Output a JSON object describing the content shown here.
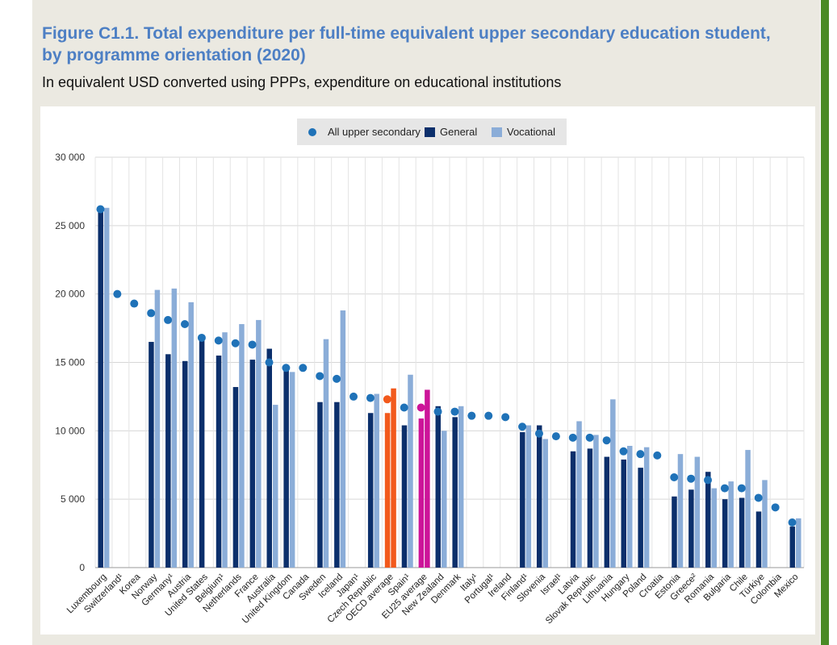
{
  "header": {
    "title": "Figure C1.1. Total expenditure per full-time equivalent upper secondary education student, by programme orientation (2020)",
    "subtitle": "In equivalent USD converted using PPPs, expenditure on educational institutions"
  },
  "colors": {
    "all": "#1f72b8",
    "general": "#0b2f6b",
    "vocational": "#8badd8",
    "oecd": "#f2591c",
    "eu25": "#cc1499",
    "accent_bar": "#4a8a25"
  },
  "legend": {
    "all": "All upper secondary",
    "general": "General",
    "vocational": "Vocational"
  },
  "chart_data": {
    "type": "bar",
    "title": "Figure C1.1. Total expenditure per full-time equivalent upper secondary education student, by programme orientation (2020)",
    "subtitle": "In equivalent USD converted using PPPs, expenditure on educational institutions",
    "xlabel": "",
    "ylabel": "",
    "ylim": [
      0,
      30000
    ],
    "yticks": [
      0,
      5000,
      10000,
      15000,
      20000,
      25000,
      30000
    ],
    "ytick_labels": [
      "0",
      "5 000",
      "10 000",
      "15 000",
      "20 000",
      "25 000",
      "30 000"
    ],
    "grid": true,
    "legend_position": "top-center",
    "categories": [
      "Luxembourg",
      "Switzerland¹",
      "Korea",
      "Norway",
      "Germany¹",
      "Austria",
      "United States",
      "Belgium¹",
      "Netherlands",
      "France",
      "Australia",
      "United Kingdom",
      "Canada",
      "Sweden",
      "Iceland",
      "Japan¹",
      "Czech Republic",
      "OECD average",
      "Spain¹",
      "EU25 average",
      "New Zealand",
      "Denmark",
      "Italy¹",
      "Portugal¹",
      "Ireland",
      "Finland¹",
      "Slovenia",
      "Israel¹",
      "Latvia",
      "Slovak Republic",
      "Lithuania",
      "Hungary",
      "Poland",
      "Croatia",
      "Estonia",
      "Greece²",
      "Romania",
      "Bulgaria",
      "Chile",
      "Türkiye",
      "Colombia",
      "Mexico"
    ],
    "highlight": {
      "OECD average": "oecd",
      "EU25 average": "eu25"
    },
    "series": [
      {
        "name": "All upper secondary",
        "kind": "marker",
        "values": [
          26200,
          20000,
          19300,
          18600,
          18100,
          17800,
          16800,
          16600,
          16400,
          16300,
          15000,
          14600,
          14600,
          14000,
          13800,
          12500,
          12400,
          12300,
          11700,
          11700,
          11400,
          11400,
          11100,
          11100,
          11000,
          10300,
          9800,
          9600,
          9500,
          9500,
          9300,
          8500,
          8300,
          8200,
          6600,
          6500,
          6400,
          5800,
          5800,
          5100,
          4400,
          3300
        ]
      },
      {
        "name": "General",
        "kind": "bar",
        "values": [
          26000,
          null,
          null,
          16500,
          15600,
          15100,
          16700,
          15500,
          13200,
          15200,
          16000,
          14600,
          null,
          12100,
          12100,
          null,
          11300,
          11300,
          10400,
          10900,
          11800,
          11000,
          null,
          null,
          null,
          9900,
          10400,
          null,
          8500,
          8700,
          8100,
          7900,
          7300,
          null,
          5200,
          5700,
          7000,
          5000,
          5100,
          4100,
          null,
          3000
        ]
      },
      {
        "name": "Vocational",
        "kind": "bar",
        "values": [
          26300,
          null,
          null,
          20300,
          20400,
          19400,
          null,
          17200,
          17800,
          18100,
          11900,
          14300,
          null,
          16700,
          18800,
          null,
          12700,
          13100,
          14100,
          13000,
          10000,
          11800,
          null,
          null,
          null,
          10400,
          9400,
          null,
          10700,
          9700,
          12300,
          8900,
          8800,
          null,
          8300,
          8100,
          5800,
          6300,
          8600,
          6400,
          null,
          3600
        ]
      }
    ]
  }
}
